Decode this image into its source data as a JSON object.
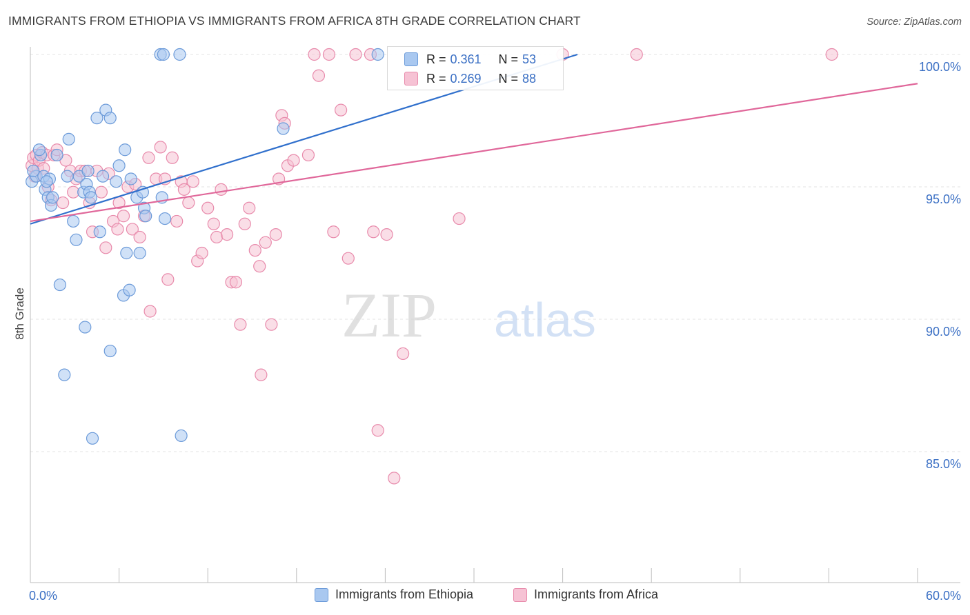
{
  "title": "IMMIGRANTS FROM ETHIOPIA VS IMMIGRANTS FROM AFRICA 8TH GRADE CORRELATION CHART",
  "source": "Source: ZipAtlas.com",
  "watermark": {
    "zip": "ZIP",
    "atlas": "atlas"
  },
  "colors": {
    "blue_fill": "#a9c8f0",
    "blue_stroke": "#6b9ad9",
    "blue_line": "#2f6fcc",
    "pink_fill": "#f6c2d4",
    "pink_stroke": "#e88aab",
    "pink_line": "#e0679a",
    "axis_label": "#3a6fc4",
    "grid": "#e3e3e3"
  },
  "legend": {
    "r_label": "R =",
    "n_label": "N =",
    "series": [
      {
        "name": "Immigrants from Ethiopia",
        "r": "0.361",
        "n": "53"
      },
      {
        "name": "Immigrants from Africa",
        "r": "0.269",
        "n": "88"
      }
    ]
  },
  "chart_data": {
    "type": "scatter",
    "title": "IMMIGRANTS FROM ETHIOPIA VS IMMIGRANTS FROM AFRICA 8TH GRADE CORRELATION CHART",
    "xlabel": "",
    "ylabel": "8th Grade",
    "xlim": [
      0,
      60
    ],
    "ylim": [
      80.5,
      100.5
    ],
    "x_tick_labels": [
      "0.0%",
      "60.0%"
    ],
    "y_ticks": [
      100,
      95,
      90,
      85
    ],
    "y_tick_labels": [
      "100.0%",
      "95.0%",
      "90.0%",
      "85.0%"
    ],
    "grid": true,
    "legend_placement": "bottom",
    "series": [
      {
        "name": "Immigrants from Ethiopia",
        "trend": {
          "x0": 0,
          "y0": 93.6,
          "x1": 37,
          "y1": 100.0
        },
        "points": [
          [
            0.1,
            95.2
          ],
          [
            0.4,
            95.4
          ],
          [
            0.7,
            96.2
          ],
          [
            0.9,
            95.4
          ],
          [
            1.0,
            94.9
          ],
          [
            1.2,
            94.6
          ],
          [
            1.3,
            95.3
          ],
          [
            1.4,
            94.3
          ],
          [
            1.5,
            94.6
          ],
          [
            1.8,
            96.2
          ],
          [
            2.0,
            91.3
          ],
          [
            2.3,
            87.9
          ],
          [
            2.6,
            96.8
          ],
          [
            2.9,
            93.7
          ],
          [
            3.1,
            93.0
          ],
          [
            3.3,
            95.4
          ],
          [
            3.6,
            94.8
          ],
          [
            3.7,
            89.7
          ],
          [
            3.8,
            95.1
          ],
          [
            3.9,
            95.6
          ],
          [
            4.0,
            94.8
          ],
          [
            4.1,
            94.6
          ],
          [
            4.2,
            85.5
          ],
          [
            4.5,
            97.6
          ],
          [
            4.7,
            93.3
          ],
          [
            4.9,
            95.4
          ],
          [
            5.1,
            97.9
          ],
          [
            5.4,
            97.6
          ],
          [
            5.4,
            88.8
          ],
          [
            5.8,
            95.2
          ],
          [
            6.0,
            95.8
          ],
          [
            6.3,
            90.9
          ],
          [
            6.4,
            96.4
          ],
          [
            6.5,
            92.5
          ],
          [
            6.7,
            91.1
          ],
          [
            6.8,
            95.3
          ],
          [
            7.2,
            94.6
          ],
          [
            7.4,
            92.5
          ],
          [
            7.6,
            94.8
          ],
          [
            7.7,
            94.2
          ],
          [
            7.8,
            93.9
          ],
          [
            8.8,
            100.0
          ],
          [
            8.9,
            94.6
          ],
          [
            9.0,
            100.0
          ],
          [
            9.1,
            93.8
          ],
          [
            10.1,
            100.0
          ],
          [
            10.2,
            85.6
          ],
          [
            17.1,
            97.2
          ],
          [
            23.5,
            100.0
          ],
          [
            0.2,
            95.6
          ],
          [
            0.6,
            96.4
          ],
          [
            1.1,
            95.2
          ],
          [
            2.5,
            95.4
          ]
        ]
      },
      {
        "name": "Immigrants from Africa",
        "trend": {
          "x0": 0,
          "y0": 93.7,
          "x1": 60,
          "y1": 98.9
        },
        "points": [
          [
            0.1,
            95.8
          ],
          [
            0.2,
            96.1
          ],
          [
            0.3,
            95.4
          ],
          [
            0.4,
            96.2
          ],
          [
            0.5,
            95.7
          ],
          [
            0.6,
            96.0
          ],
          [
            0.8,
            96.3
          ],
          [
            0.9,
            95.7
          ],
          [
            1.1,
            96.2
          ],
          [
            1.2,
            95.0
          ],
          [
            1.4,
            94.5
          ],
          [
            1.6,
            96.2
          ],
          [
            1.8,
            96.4
          ],
          [
            2.2,
            94.4
          ],
          [
            2.4,
            96.0
          ],
          [
            2.7,
            95.6
          ],
          [
            2.9,
            94.8
          ],
          [
            3.1,
            95.3
          ],
          [
            3.4,
            95.6
          ],
          [
            3.7,
            95.6
          ],
          [
            4.0,
            94.4
          ],
          [
            4.2,
            93.3
          ],
          [
            4.5,
            95.6
          ],
          [
            4.8,
            94.8
          ],
          [
            5.1,
            92.7
          ],
          [
            5.3,
            95.5
          ],
          [
            5.6,
            93.7
          ],
          [
            5.9,
            93.4
          ],
          [
            6.0,
            94.4
          ],
          [
            6.3,
            93.9
          ],
          [
            6.6,
            95.0
          ],
          [
            6.9,
            93.4
          ],
          [
            7.1,
            95.1
          ],
          [
            7.4,
            93.1
          ],
          [
            7.7,
            93.9
          ],
          [
            8.0,
            96.1
          ],
          [
            8.1,
            90.3
          ],
          [
            8.5,
            95.3
          ],
          [
            8.8,
            96.5
          ],
          [
            9.1,
            95.3
          ],
          [
            9.3,
            91.5
          ],
          [
            9.6,
            96.1
          ],
          [
            9.9,
            93.7
          ],
          [
            10.2,
            95.2
          ],
          [
            10.4,
            94.9
          ],
          [
            10.7,
            94.4
          ],
          [
            11.0,
            95.2
          ],
          [
            11.3,
            92.2
          ],
          [
            11.6,
            92.5
          ],
          [
            12.0,
            94.2
          ],
          [
            12.4,
            93.6
          ],
          [
            12.6,
            93.1
          ],
          [
            12.9,
            94.9
          ],
          [
            13.3,
            93.2
          ],
          [
            13.6,
            91.4
          ],
          [
            13.9,
            91.4
          ],
          [
            14.2,
            89.8
          ],
          [
            14.5,
            93.6
          ],
          [
            14.8,
            94.2
          ],
          [
            15.2,
            92.6
          ],
          [
            15.5,
            92.0
          ],
          [
            15.6,
            87.9
          ],
          [
            15.9,
            92.9
          ],
          [
            16.3,
            89.8
          ],
          [
            16.6,
            93.2
          ],
          [
            16.8,
            95.3
          ],
          [
            17.0,
            97.7
          ],
          [
            17.2,
            97.4
          ],
          [
            17.4,
            95.8
          ],
          [
            17.8,
            96.0
          ],
          [
            18.8,
            96.2
          ],
          [
            19.2,
            100.0
          ],
          [
            19.5,
            99.2
          ],
          [
            20.2,
            100.0
          ],
          [
            20.5,
            93.3
          ],
          [
            21.0,
            97.9
          ],
          [
            21.5,
            92.3
          ],
          [
            22.0,
            100.0
          ],
          [
            23.0,
            100.0
          ],
          [
            23.2,
            93.3
          ],
          [
            23.5,
            85.8
          ],
          [
            24.1,
            93.2
          ],
          [
            24.6,
            84.0
          ],
          [
            25.2,
            88.7
          ],
          [
            29.0,
            93.8
          ],
          [
            36.0,
            100.0
          ],
          [
            41.0,
            100.0
          ],
          [
            54.2,
            100.0
          ]
        ]
      }
    ]
  }
}
